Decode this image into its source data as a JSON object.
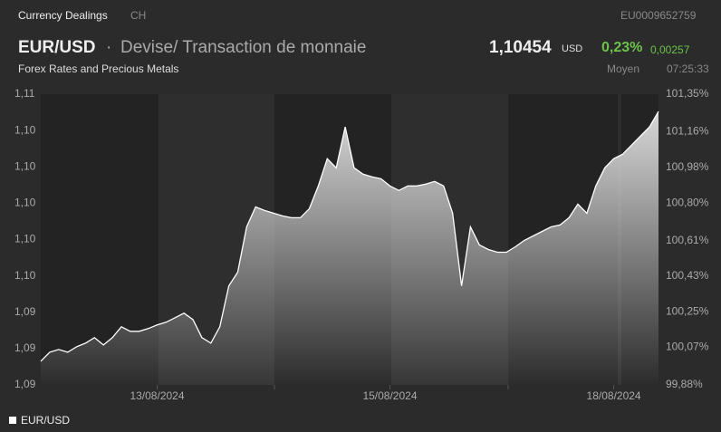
{
  "header": {
    "section": "Currency Dealings",
    "country": "CH",
    "isin": "EU0009652759",
    "symbol": "EUR/USD",
    "separator": "·",
    "description": "Devise/ Transaction de monnaie",
    "price": "1,10454",
    "currency": "USD",
    "change_pct": "0,23%",
    "change_abs": "0,00257",
    "category": "Forex Rates and Precious Metals",
    "price_type": "Moyen",
    "time": "07:25:33"
  },
  "chart_data": {
    "type": "area",
    "categories": [
      null,
      null,
      null,
      null,
      null,
      null,
      null,
      null,
      null,
      null,
      null,
      null,
      null,
      "13/08/2024",
      null,
      null,
      null,
      null,
      null,
      null,
      null,
      null,
      null,
      null,
      null,
      null,
      null,
      null,
      null,
      null,
      null,
      null,
      null,
      null,
      null,
      null,
      null,
      null,
      null,
      "15/08/2024",
      null,
      null,
      null,
      null,
      null,
      null,
      null,
      null,
      null,
      null,
      null,
      null,
      null,
      null,
      null,
      null,
      null,
      null,
      null,
      null,
      null,
      null,
      null,
      null,
      "18/08/2024",
      null,
      null,
      null,
      null,
      null
    ],
    "series": [
      {
        "name": "EUR/USD",
        "color": "#ffffff",
        "values": [
          1.0908,
          1.0913,
          1.09145,
          1.0913,
          1.0916,
          1.0918,
          1.0921,
          1.0917,
          1.0921,
          1.0927,
          1.09245,
          1.09245,
          1.0926,
          1.0928,
          1.09295,
          1.0932,
          1.09345,
          1.0931,
          1.0921,
          1.0918,
          1.0927,
          1.09495,
          1.0957,
          1.0982,
          1.0993,
          1.0991,
          1.09895,
          1.0988,
          1.0987,
          1.0987,
          1.0992,
          1.10045,
          1.10195,
          1.10145,
          1.1037,
          1.10145,
          1.1011,
          1.10095,
          1.10085,
          1.10045,
          1.1002,
          1.10045,
          1.10045,
          1.10055,
          1.1007,
          1.10045,
          1.09895,
          1.09495,
          1.0982,
          1.0972,
          1.09695,
          1.0968,
          1.0968,
          1.0971,
          1.09745,
          1.0977,
          1.09795,
          1.0982,
          1.0983,
          1.0987,
          1.09945,
          1.09895,
          1.10045,
          1.10145,
          1.10195,
          1.1022,
          1.1027,
          1.1032,
          1.1037,
          1.10455
        ]
      }
    ],
    "ylim": [
      1.0895,
      1.1055
    ],
    "yticks": [
      {
        "value": 1.0895,
        "label": "1,09"
      },
      {
        "value": 1.0915,
        "label": "1,09"
      },
      {
        "value": 1.0935,
        "label": "1,09"
      },
      {
        "value": 1.0955,
        "label": "1,10"
      },
      {
        "value": 1.0975,
        "label": "1,10"
      },
      {
        "value": 1.0995,
        "label": "1,10"
      },
      {
        "value": 1.1015,
        "label": "1,10"
      },
      {
        "value": 1.1035,
        "label": "1,10"
      },
      {
        "value": 1.1055,
        "label": "1,11"
      }
    ],
    "y2lim": [
      99.88,
      101.35
    ],
    "y2ticks": [
      {
        "value": 99.88,
        "label": "99,88%"
      },
      {
        "value": 100.07,
        "label": "100,07%"
      },
      {
        "value": 100.25,
        "label": "100,25%"
      },
      {
        "value": 100.43,
        "label": "100,43%"
      },
      {
        "value": 100.61,
        "label": "100,61%"
      },
      {
        "value": 100.8,
        "label": "100,80%"
      },
      {
        "value": 100.98,
        "label": "100,98%"
      },
      {
        "value": 101.16,
        "label": "101,16%"
      },
      {
        "value": 101.35,
        "label": "101,35%"
      }
    ],
    "legend": "bottom-left"
  }
}
